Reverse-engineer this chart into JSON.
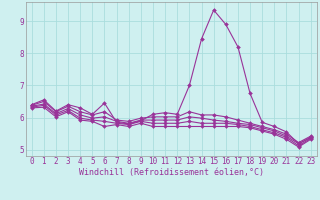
{
  "xlabel": "Windchill (Refroidissement éolien,°C)",
  "background_color": "#cff0f0",
  "grid_color": "#aadddd",
  "line_color": "#993399",
  "xlim": [
    -0.5,
    23.5
  ],
  "ylim": [
    4.8,
    9.6
  ],
  "yticks": [
    5,
    6,
    7,
    8,
    9
  ],
  "xticks": [
    0,
    1,
    2,
    3,
    4,
    5,
    6,
    7,
    8,
    9,
    10,
    11,
    12,
    13,
    14,
    15,
    16,
    17,
    18,
    19,
    20,
    21,
    22,
    23
  ],
  "series": [
    [
      6.4,
      6.55,
      6.2,
      6.4,
      6.3,
      6.1,
      6.45,
      5.85,
      5.8,
      5.9,
      6.1,
      6.15,
      6.1,
      7.0,
      8.45,
      9.35,
      8.9,
      8.2,
      6.75,
      5.85,
      5.72,
      5.55,
      5.18,
      5.38
    ],
    [
      6.38,
      6.5,
      6.18,
      6.35,
      6.18,
      6.08,
      6.18,
      5.92,
      5.88,
      5.98,
      6.02,
      6.02,
      6.02,
      6.18,
      6.08,
      6.08,
      6.02,
      5.92,
      5.82,
      5.72,
      5.62,
      5.48,
      5.22,
      5.42
    ],
    [
      6.35,
      6.42,
      6.12,
      6.28,
      6.08,
      5.98,
      6.02,
      5.88,
      5.82,
      5.92,
      5.92,
      5.92,
      5.92,
      6.02,
      5.98,
      5.92,
      5.88,
      5.82,
      5.78,
      5.68,
      5.58,
      5.42,
      5.18,
      5.38
    ],
    [
      6.32,
      6.38,
      6.08,
      6.22,
      5.98,
      5.92,
      5.88,
      5.82,
      5.78,
      5.88,
      5.82,
      5.82,
      5.82,
      5.88,
      5.82,
      5.82,
      5.82,
      5.78,
      5.72,
      5.62,
      5.52,
      5.38,
      5.12,
      5.35
    ],
    [
      6.3,
      6.32,
      6.02,
      6.18,
      5.92,
      5.88,
      5.72,
      5.78,
      5.72,
      5.82,
      5.72,
      5.72,
      5.72,
      5.72,
      5.72,
      5.72,
      5.72,
      5.72,
      5.68,
      5.58,
      5.48,
      5.32,
      5.08,
      5.32
    ]
  ],
  "marker": "D",
  "marker_size": 2.0,
  "line_width": 0.8,
  "font_color": "#993399",
  "tick_font_size": 5.5,
  "label_font_size": 6.0
}
